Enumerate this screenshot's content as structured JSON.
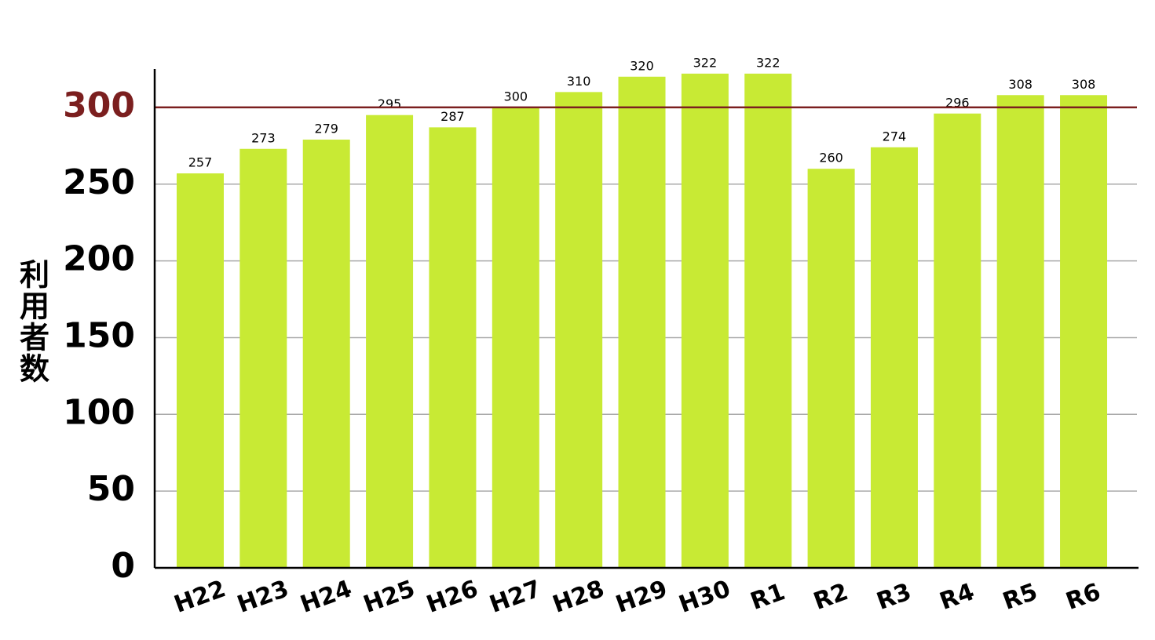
{
  "chart_data": {
    "type": "bar",
    "y_label": "利用者数",
    "categories": [
      "H22",
      "H23",
      "H24",
      "H25",
      "H26",
      "H27",
      "H28",
      "H29",
      "H30",
      "R1",
      "R2",
      "R3",
      "R4",
      "R5",
      "R6"
    ],
    "values": [
      257,
      273,
      279,
      295,
      287,
      300,
      310,
      320,
      322,
      322,
      260,
      274,
      296,
      308,
      308
    ],
    "color": "#c8ea34",
    "ylim": [
      0,
      325
    ],
    "yticks": [
      0,
      50,
      100,
      150,
      200,
      250,
      300
    ],
    "grid": true,
    "reference_line": {
      "value": 300,
      "color": "#7b1f1f"
    }
  }
}
